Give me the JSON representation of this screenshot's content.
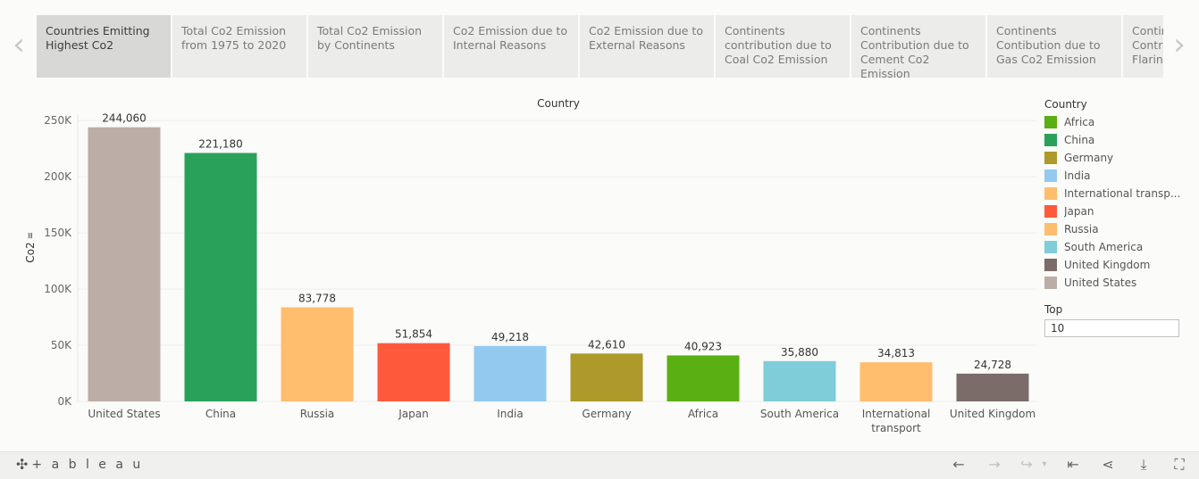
{
  "story": {
    "tabs": [
      {
        "label": "Countries Emitting Highest Co2",
        "active": true
      },
      {
        "label": "Total Co2 Emission from 1975 to 2020",
        "active": false
      },
      {
        "label": "Total Co2 Emission by Continents",
        "active": false
      },
      {
        "label": "Co2 Emission due to Internal Reasons",
        "active": false
      },
      {
        "label": "Co2 Emission due to External Reasons",
        "active": false
      },
      {
        "label": "Continents contribution due to Coal Co2 Emission",
        "active": false
      },
      {
        "label": "Continents Contribution due to Cement Co2 Emission",
        "active": false
      },
      {
        "label": "Continents Contibution due to Gas Co2 Emission",
        "active": false
      },
      {
        "label": "Continents Contribution due to Flaring",
        "active": false
      }
    ],
    "prev_icon": "chevron-left-icon",
    "next_icon": "chevron-right-icon"
  },
  "chart_data": {
    "type": "bar",
    "title": "Country",
    "xlabel": "",
    "ylabel": "Co2",
    "ylim": [
      0,
      270000
    ],
    "yticks": [
      0,
      50000,
      100000,
      150000,
      200000,
      250000
    ],
    "ytick_labels": [
      "0K",
      "50K",
      "100K",
      "150K",
      "200K",
      "250K"
    ],
    "categories": [
      "United States",
      "China",
      "Russia",
      "Japan",
      "India",
      "Germany",
      "Africa",
      "South America",
      "International transport",
      "United Kingdom"
    ],
    "category_lines": [
      [
        "United States"
      ],
      [
        "China"
      ],
      [
        "Russia"
      ],
      [
        "Japan"
      ],
      [
        "India"
      ],
      [
        "Germany"
      ],
      [
        "Africa"
      ],
      [
        "South America"
      ],
      [
        "International",
        "transport"
      ],
      [
        "United Kingdom"
      ]
    ],
    "values": [
      244060,
      221180,
      83778,
      51854,
      49218,
      42610,
      40923,
      35880,
      34813,
      24728
    ],
    "value_labels": [
      "244,060",
      "221,180",
      "83,778",
      "51,854",
      "49,218",
      "42,610",
      "40,923",
      "35,880",
      "34,813",
      "24,728"
    ],
    "colors": [
      "#bcaea6",
      "#2aa15a",
      "#ffbd6e",
      "#ff5a3c",
      "#93c9ef",
      "#ae9a2a",
      "#5aaf12",
      "#7ecdd8",
      "#ffbd6e",
      "#7b6c69"
    ],
    "grid": true,
    "legend": {
      "title": "Country",
      "position": "right",
      "items": [
        {
          "label": "Africa",
          "color": "#5aaf12"
        },
        {
          "label": "China",
          "color": "#2aa15a"
        },
        {
          "label": "Germany",
          "color": "#ae9a2a"
        },
        {
          "label": "India",
          "color": "#93c9ef"
        },
        {
          "label": "International transp...",
          "color": "#ffbd6e"
        },
        {
          "label": "Japan",
          "color": "#ff5a3c"
        },
        {
          "label": "Russia",
          "color": "#ffbd6e"
        },
        {
          "label": "South America",
          "color": "#7ecdd8"
        },
        {
          "label": "United Kingdom",
          "color": "#7b6c69"
        },
        {
          "label": "United States",
          "color": "#bcaea6"
        }
      ]
    }
  },
  "filter": {
    "label": "Top",
    "value": "10"
  },
  "toolbar": {
    "logo_text": "+ a b l e a u",
    "logo_icon": "tableau-logo-icon",
    "buttons": [
      {
        "name": "undo-button",
        "icon": "←",
        "enabled": true
      },
      {
        "name": "redo-button",
        "icon": "→",
        "enabled": false
      },
      {
        "name": "revert-button",
        "icon": "↪",
        "enabled": false
      },
      {
        "name": "revert-menu-button",
        "icon": "▾",
        "enabled": false
      },
      {
        "name": "reset-button",
        "icon": "⇤",
        "enabled": true
      },
      {
        "name": "share-button",
        "icon": "⋖",
        "enabled": true
      },
      {
        "name": "download-button",
        "icon": "⤓",
        "enabled": true
      },
      {
        "name": "fullscreen-button",
        "icon": "⛶",
        "enabled": true
      }
    ]
  }
}
